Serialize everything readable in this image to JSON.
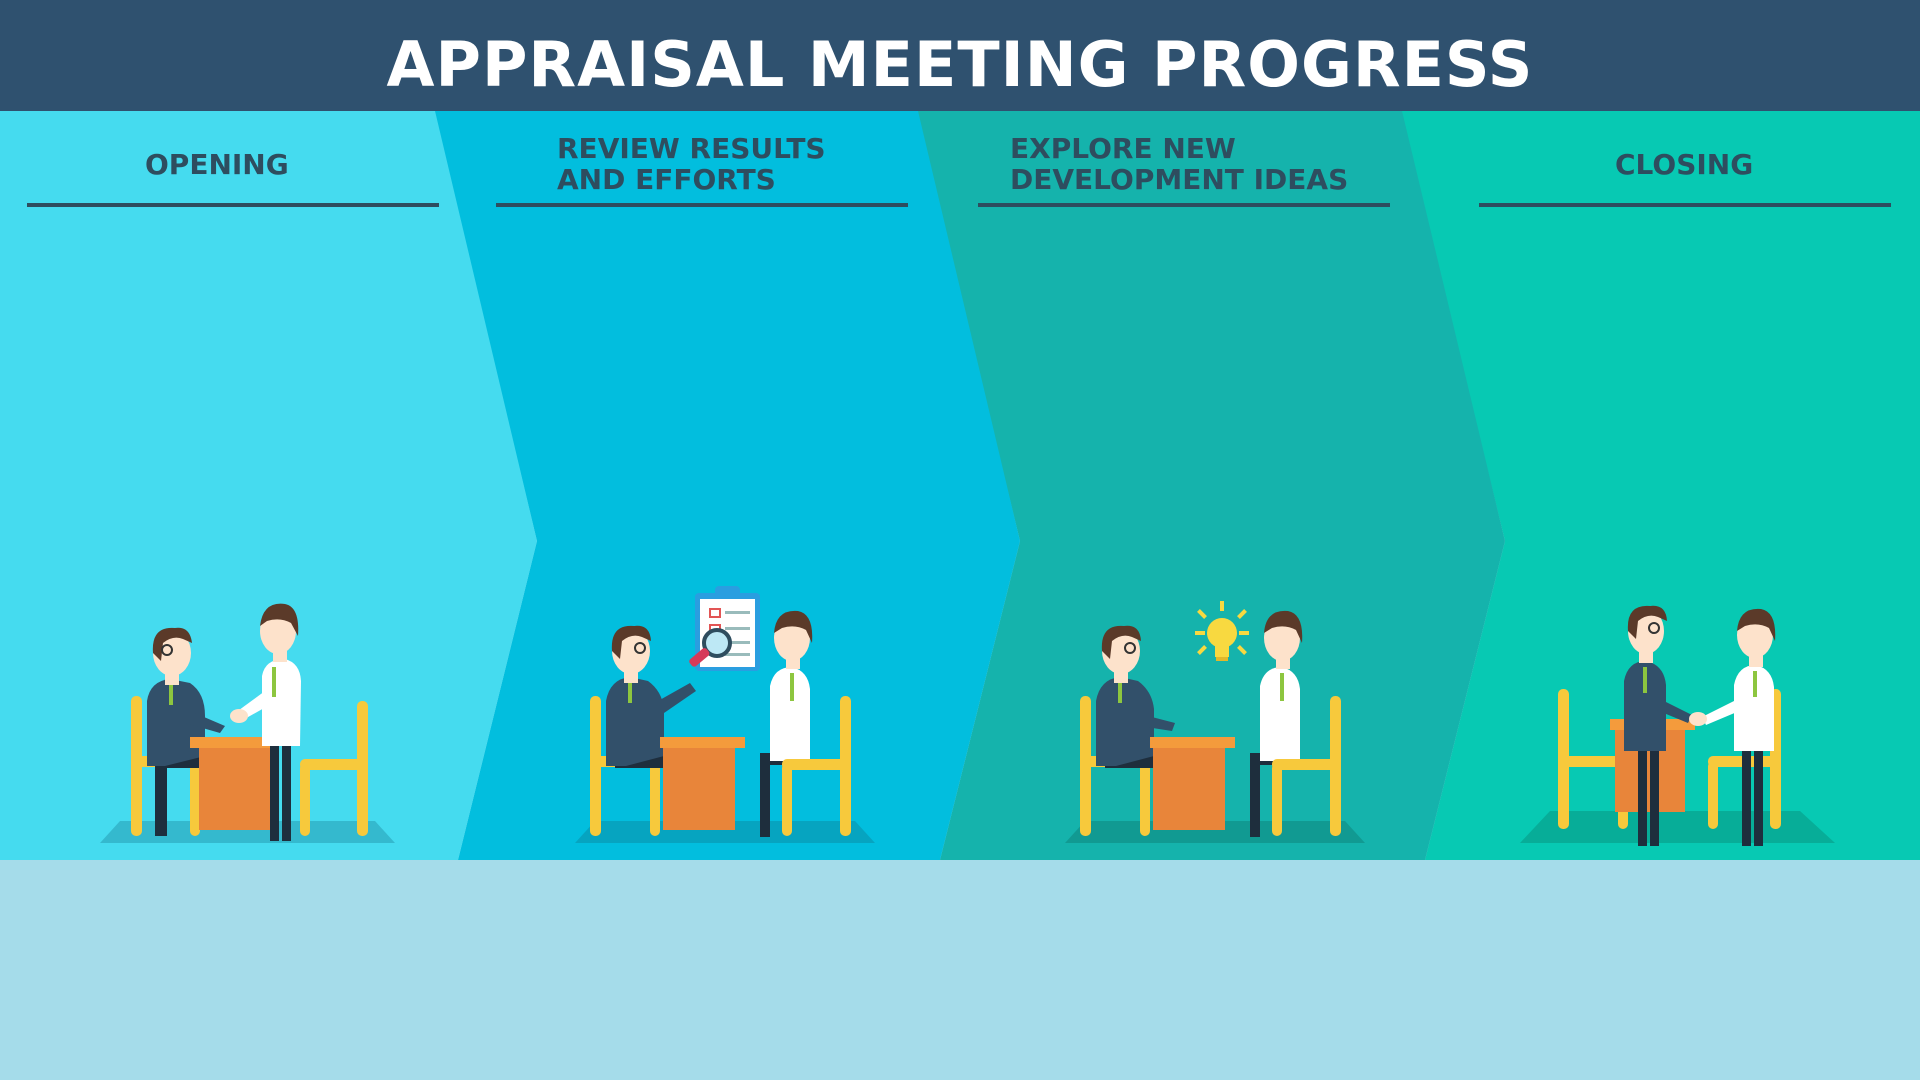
{
  "title": "APPRAISAL MEETING PROGRESS",
  "stages": [
    {
      "id": "opening",
      "label_lines": [
        "OPENING"
      ],
      "color": "#45dbef",
      "floor": "#34b9ce",
      "scene": "handshake-at-desk-icon"
    },
    {
      "id": "review",
      "label_lines": [
        "REVIEW RESULTS",
        "AND EFFORTS"
      ],
      "color": "#02bede",
      "floor": "#06a4c0",
      "scene": "review-documents-icon"
    },
    {
      "id": "explore",
      "label_lines": [
        "EXPLORE NEW",
        "DEVELOPMENT IDEAS"
      ],
      "color": "#15b3ac",
      "floor": "#119a92",
      "scene": "idea-lightbulb-icon"
    },
    {
      "id": "closing",
      "label_lines": [
        "CLOSING"
      ],
      "color": "#07c9b3",
      "floor": "#07ad98",
      "scene": "closing-handshake-icon"
    }
  ],
  "colors": {
    "header": "#2f516f",
    "label": "#2e4d5f",
    "bottom": "#a5dcea",
    "chair": "#f7c93c",
    "desk": "#e8853a",
    "desk_top": "#f49b3c",
    "suit": "#32506a",
    "shirt": "#ffffff",
    "hair": "#5b3a29",
    "skin": "#fde2cb",
    "tie": "#8dc63f",
    "pants": "#1e2e3d",
    "bulb": "#f8d940",
    "clipboard": "#2a9ee0"
  }
}
